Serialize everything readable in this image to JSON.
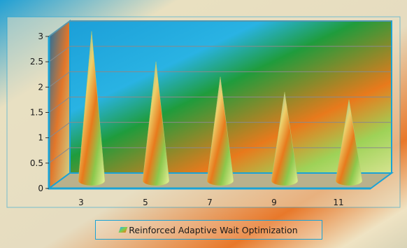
{
  "chart_data": {
    "type": "bar",
    "bar_shape": "cone",
    "three_d": true,
    "categories": [
      "3",
      "5",
      "7",
      "9",
      "11"
    ],
    "series": [
      {
        "name": "Reinforced Adaptive Wait Optimization",
        "values": [
          2.95,
          2.35,
          2.05,
          1.75,
          1.6
        ]
      }
    ],
    "ylim": [
      0,
      3
    ],
    "yticks": [
      "0",
      "0.5",
      "1",
      "1.5",
      "2",
      "2.5",
      "3"
    ],
    "grid": true,
    "legend_position": "bottom",
    "colors": {
      "accent": "#1aa3d6",
      "cone_top": "#2fb7e6",
      "cone_mid": "#e87a1c",
      "cone_base": "#c8e86a",
      "floor": "#b9b18c"
    }
  }
}
